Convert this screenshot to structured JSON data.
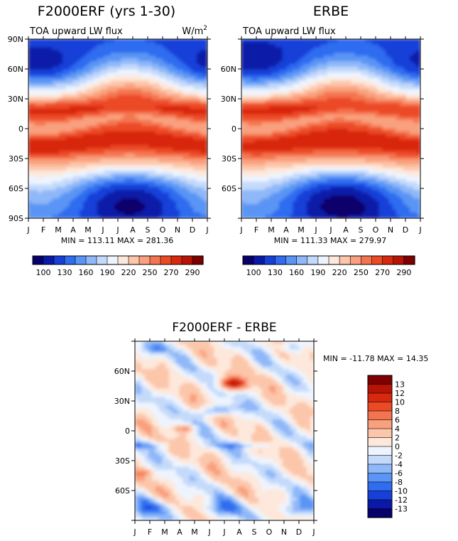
{
  "months": [
    "J",
    "F",
    "M",
    "A",
    "M",
    "J",
    "J",
    "A",
    "S",
    "O",
    "N",
    "D",
    "J"
  ],
  "colors": {
    "diverging_full": [
      "#08006b",
      "#0a1aa8",
      "#1640d8",
      "#2f6cf0",
      "#5a95f5",
      "#8fb8f8",
      "#c4dafb",
      "#eef4fe",
      "#fde8db",
      "#fcc6aa",
      "#f9a07e",
      "#f47450",
      "#ec4a25",
      "#d8280e",
      "#b81406",
      "#7e0000"
    ],
    "diff_scale": [
      "#08006b",
      "#0a1aa8",
      "#1640d8",
      "#2f6cf0",
      "#5a95f5",
      "#8fb8f8",
      "#c4dafb",
      "#eef4fe",
      "#fde8db",
      "#fcc6aa",
      "#f9a07e",
      "#f47450",
      "#ec4a25",
      "#d8280e",
      "#b81406",
      "#7e0000"
    ]
  },
  "chart_data": [
    {
      "type": "heatmap",
      "id": "model",
      "title": "F2000ERF (yrs 1-30)",
      "subtitle": "TOA upward LW flux",
      "units_prefix": "W/m",
      "units_exp": "2",
      "x_tick_labels": [
        "J",
        "F",
        "M",
        "A",
        "M",
        "J",
        "J",
        "A",
        "S",
        "O",
        "N",
        "D",
        "J"
      ],
      "y_tick_labels": [
        "90N",
        "60N",
        "30N",
        "0",
        "30S",
        "60S",
        "90S"
      ],
      "y_ticks": [
        90,
        60,
        30,
        0,
        -30,
        -60,
        -90
      ],
      "ylim": [
        -90,
        90
      ],
      "stats": "MIN = 113.11 MAX = 281.36",
      "min": 113.11,
      "max": 281.36,
      "colorbar_labels": [
        "100",
        "130",
        "160",
        "190",
        "220",
        "250",
        "270",
        "290"
      ]
    },
    {
      "type": "heatmap",
      "id": "obs",
      "title": "ERBE",
      "subtitle": "TOA upward LW flux",
      "x_tick_labels": [
        "J",
        "F",
        "M",
        "A",
        "M",
        "J",
        "J",
        "A",
        "S",
        "O",
        "N",
        "D",
        "J"
      ],
      "y_tick_labels": [
        "60N",
        "30N",
        "0",
        "30S",
        "60S"
      ],
      "y_ticks": [
        60,
        30,
        0,
        -30,
        -60
      ],
      "ylim": [
        -90,
        90
      ],
      "stats": "MIN = 111.33 MAX = 279.97",
      "min": 111.33,
      "max": 279.97,
      "colorbar_labels": [
        "100",
        "130",
        "160",
        "190",
        "220",
        "250",
        "270",
        "290"
      ]
    },
    {
      "type": "heatmap",
      "id": "diff",
      "title": "F2000ERF - ERBE",
      "x_tick_labels": [
        "J",
        "F",
        "M",
        "A",
        "M",
        "J",
        "J",
        "A",
        "S",
        "O",
        "N",
        "D",
        "J"
      ],
      "y_tick_labels": [
        "60N",
        "30N",
        "0",
        "30S",
        "60S"
      ],
      "y_ticks": [
        60,
        30,
        0,
        -30,
        -60
      ],
      "ylim": [
        -90,
        90
      ],
      "stats": "MIN = -11.78 MAX =  14.35",
      "min": -11.78,
      "max": 14.35,
      "colorbar_labels": [
        "13",
        "12",
        "10",
        "8",
        "6",
        "4",
        "2",
        "0",
        "-2",
        "-4",
        "-6",
        "-8",
        "-10",
        "-12",
        "-13"
      ]
    }
  ]
}
